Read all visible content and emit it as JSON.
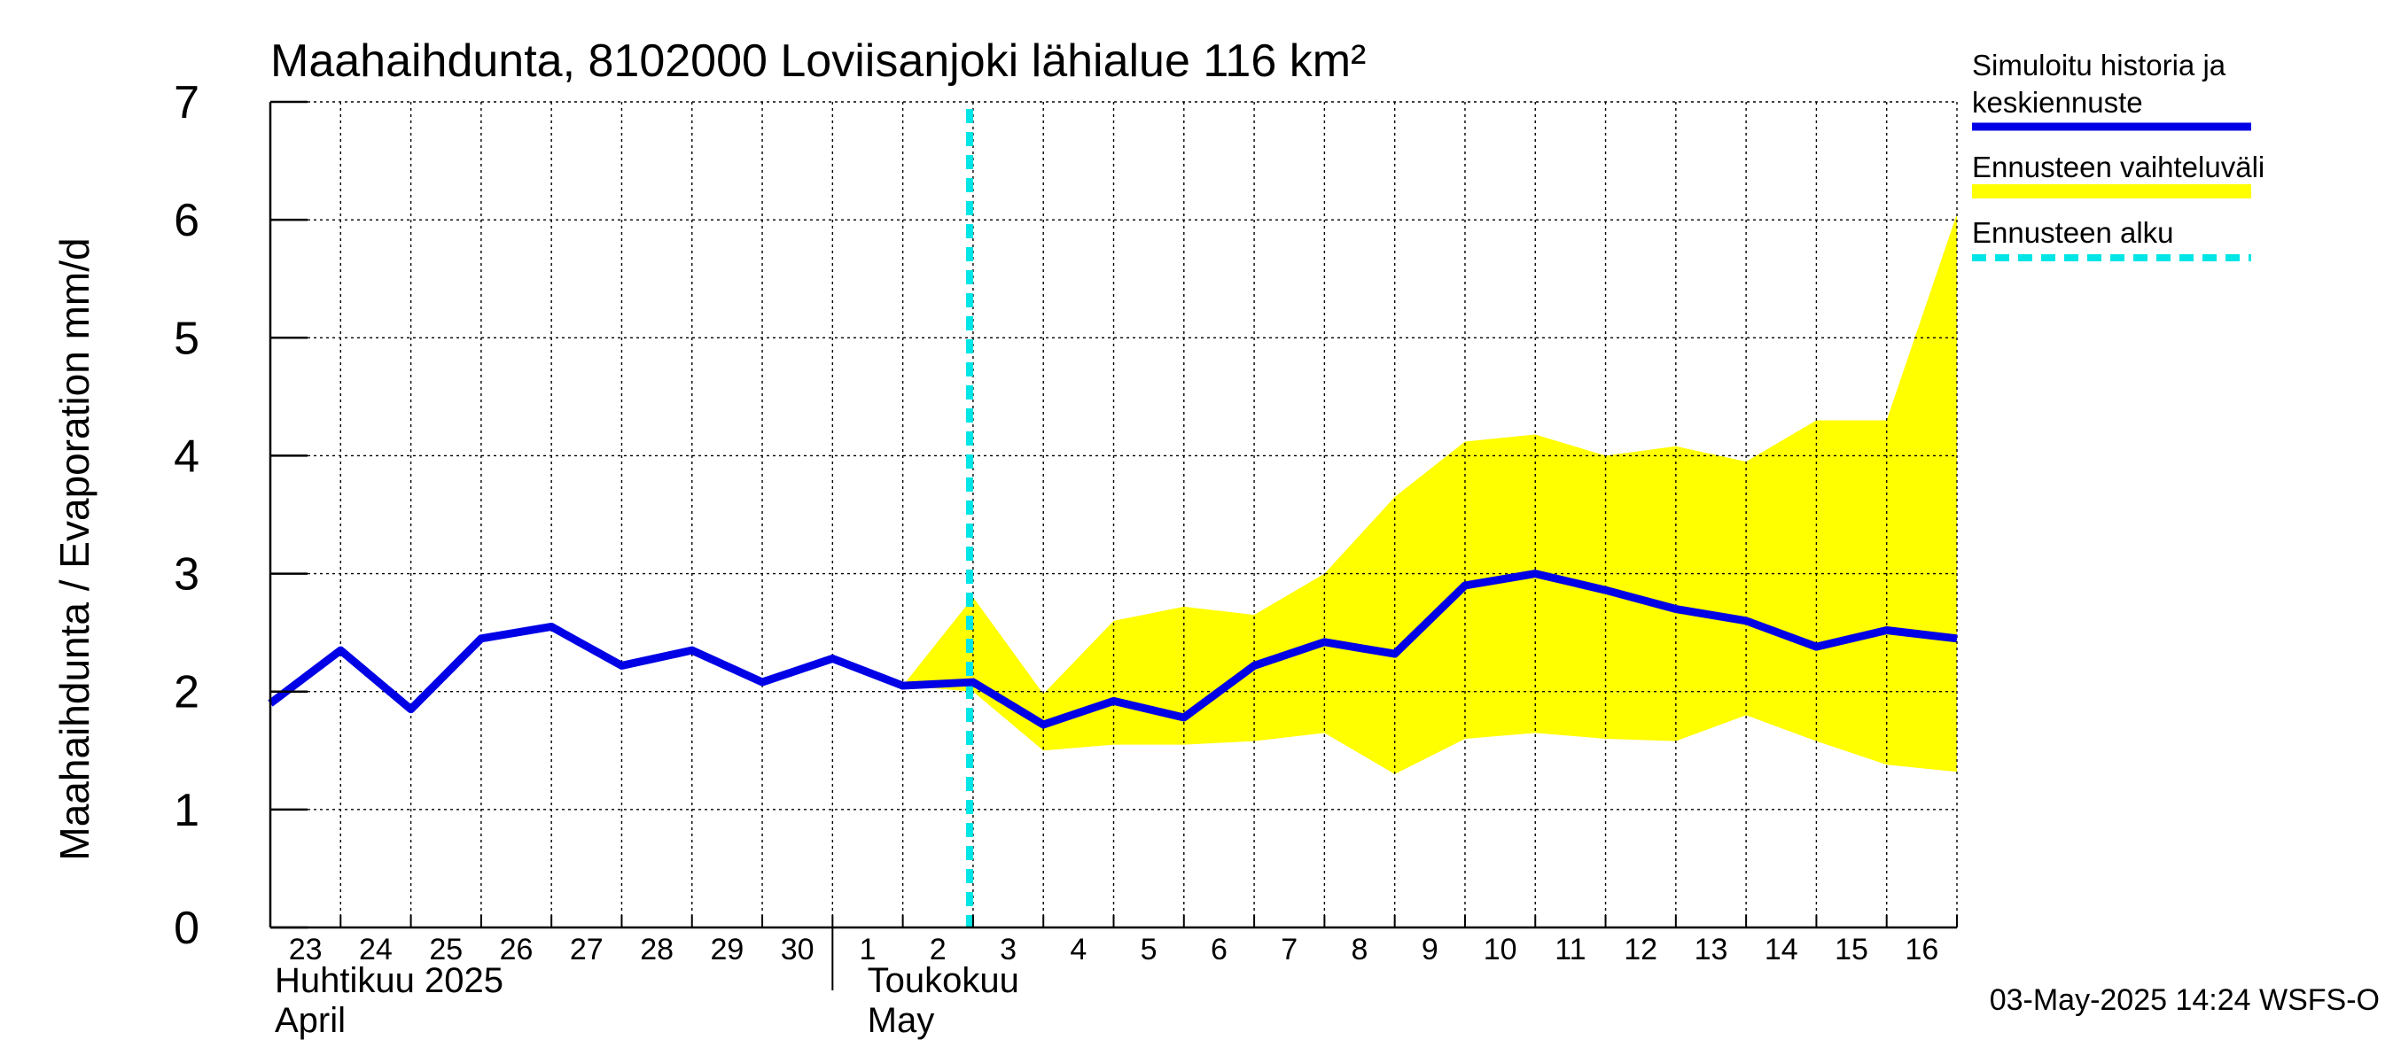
{
  "chart_data": {
    "type": "line",
    "title": "Maahaihdunta, 8102000 Loviisanjoki lähialue 116 km²",
    "ylabel": "Maahaihdunta / Evaporation   mm/d",
    "ylim": [
      0,
      7
    ],
    "yticks": [
      "0",
      "1",
      "2",
      "3",
      "4",
      "5",
      "6",
      "7"
    ],
    "x_tick_labels": [
      "23",
      "24",
      "25",
      "26",
      "27",
      "28",
      "29",
      "30",
      "1",
      "2",
      "3",
      "4",
      "5",
      "6",
      "7",
      "8",
      "9",
      "10",
      "11",
      "12",
      "13",
      "14",
      "15",
      "16"
    ],
    "month_labels": [
      {
        "fi": "Huhtikuu  2025",
        "en": "April"
      },
      {
        "fi": "Toukokuu",
        "en": "May"
      }
    ],
    "forecast_start_day_index": 10,
    "series": [
      {
        "name": "Simuloitu historia ja keskiennuste",
        "color": "#0000e6",
        "values": [
          1.9,
          2.35,
          1.85,
          2.45,
          2.55,
          2.22,
          2.35,
          2.08,
          2.28,
          2.05,
          2.08,
          1.72,
          1.92,
          1.78,
          2.22,
          2.42,
          2.32,
          2.9,
          3.0,
          2.86,
          2.7,
          2.6,
          2.38,
          2.52,
          2.45
        ]
      },
      {
        "name": "Ennusteen vaihteluväli",
        "color": "#ffff00",
        "start_index": 9,
        "upper": [
          2.05,
          2.8,
          1.98,
          2.6,
          2.72,
          2.65,
          3.0,
          3.65,
          4.12,
          4.18,
          4.0,
          4.08,
          3.95,
          4.3,
          4.3,
          6.05
        ],
        "lower": [
          2.05,
          2.0,
          1.5,
          1.55,
          1.55,
          1.58,
          1.65,
          1.3,
          1.6,
          1.65,
          1.6,
          1.58,
          1.8,
          1.58,
          1.38,
          1.32
        ]
      }
    ],
    "legend": [
      {
        "label": "Simuloitu historia ja\nkeskiennuste",
        "color": "#0000e6",
        "style": "solid"
      },
      {
        "label": "Ennusteen vaihteluväli",
        "color": "#ffff00",
        "style": "solid"
      },
      {
        "label": "Ennusteen alku",
        "color": "#00e5e5",
        "style": "dashed"
      }
    ],
    "legend_position": "right",
    "grid": true,
    "footer": "03-May-2025 14:24 WSFS-O"
  }
}
